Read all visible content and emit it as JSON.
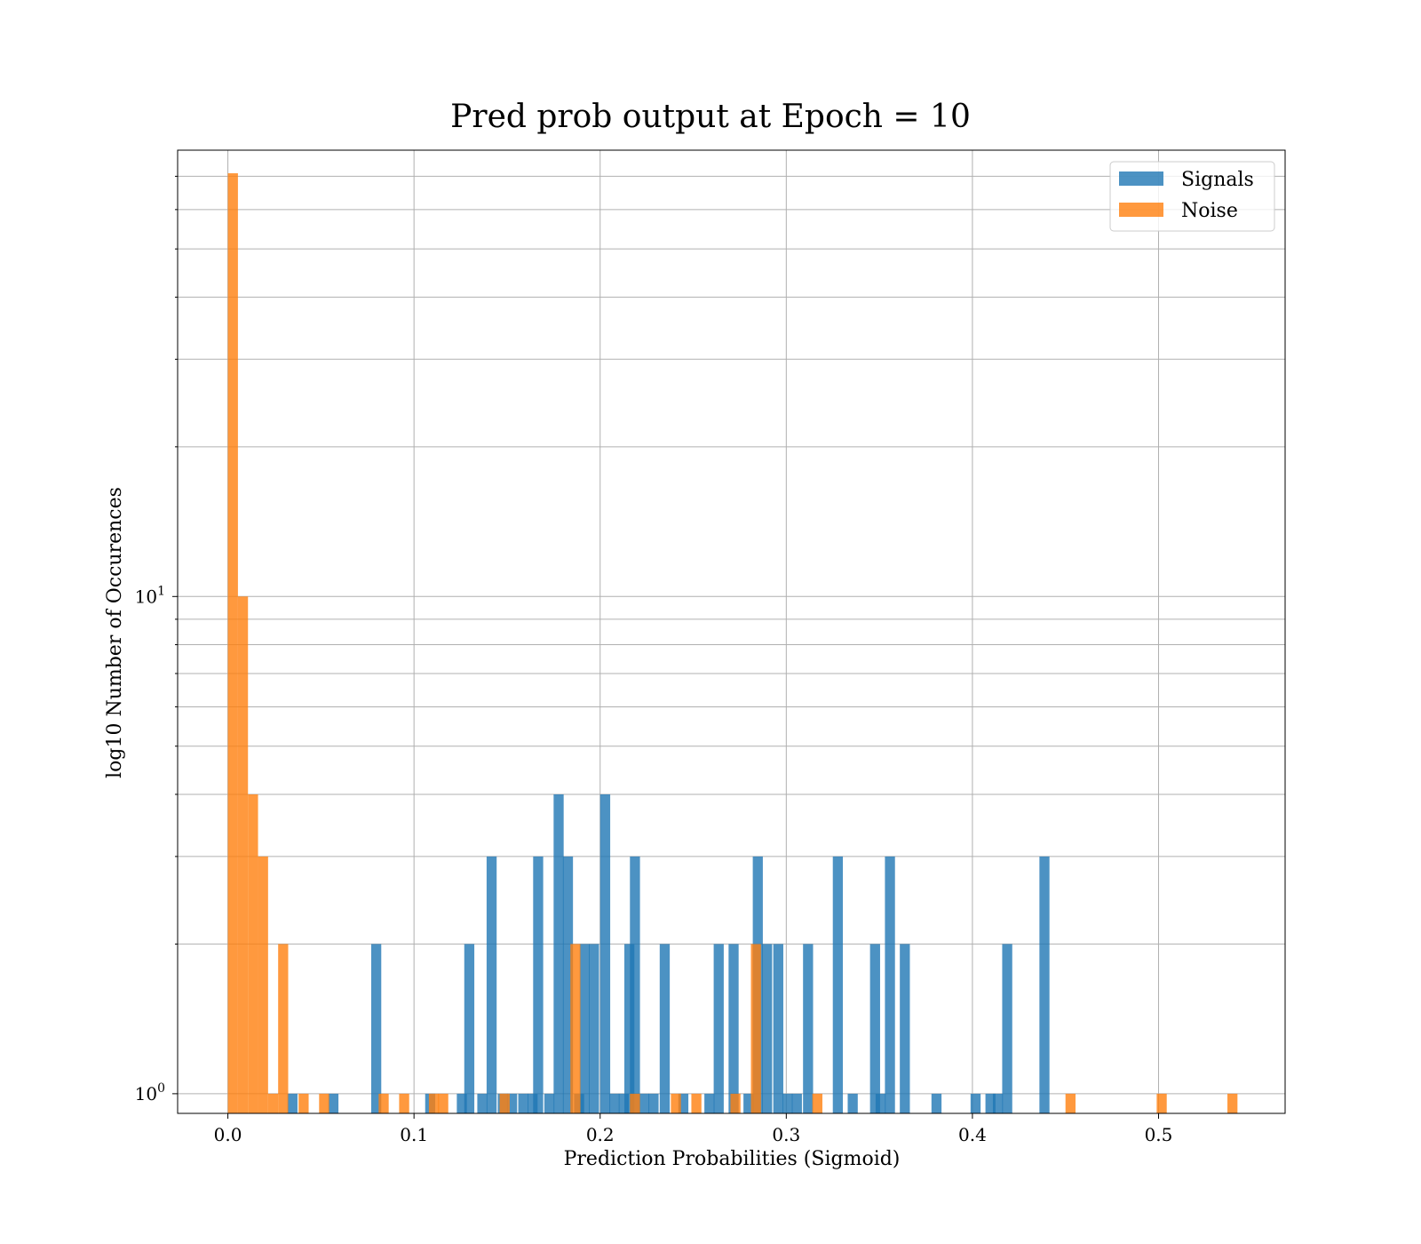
{
  "chart_data": {
    "type": "bar",
    "subtype": "overlaid-histogram",
    "title": "Pred prob output at Epoch = 10",
    "xlabel": "Prediction Probabilities (Sigmoid)",
    "ylabel": "log10 Number of Occurences",
    "xlim": [
      -0.027,
      0.568
    ],
    "ylim": [
      0.913,
      79
    ],
    "yscale": "log",
    "grid": true,
    "legend_position": "top-right",
    "bin_width": 0.0054,
    "x_ticks": [
      {
        "value": 0.0,
        "label": "0.0"
      },
      {
        "value": 0.1,
        "label": "0.1"
      },
      {
        "value": 0.2,
        "label": "0.2"
      },
      {
        "value": 0.3,
        "label": "0.3"
      },
      {
        "value": 0.4,
        "label": "0.4"
      },
      {
        "value": 0.5,
        "label": "0.5"
      }
    ],
    "y_ticks": [
      {
        "value": 1,
        "base": "10",
        "exp": "0"
      },
      {
        "value": 10,
        "base": "10",
        "exp": "1"
      }
    ],
    "series": [
      {
        "name": "Signals",
        "color": "#1f77b4",
        "opacity": 0.8,
        "bins": [
          {
            "x": 0.032,
            "count": 1
          },
          {
            "x": 0.054,
            "count": 1
          },
          {
            "x": 0.077,
            "count": 2
          },
          {
            "x": 0.106,
            "count": 1
          },
          {
            "x": 0.123,
            "count": 1
          },
          {
            "x": 0.127,
            "count": 2
          },
          {
            "x": 0.134,
            "count": 1
          },
          {
            "x": 0.139,
            "count": 3
          },
          {
            "x": 0.145,
            "count": 1
          },
          {
            "x": 0.15,
            "count": 1
          },
          {
            "x": 0.156,
            "count": 1
          },
          {
            "x": 0.161,
            "count": 1
          },
          {
            "x": 0.164,
            "count": 3
          },
          {
            "x": 0.17,
            "count": 1
          },
          {
            "x": 0.175,
            "count": 4
          },
          {
            "x": 0.18,
            "count": 3
          },
          {
            "x": 0.186,
            "count": 1
          },
          {
            "x": 0.189,
            "count": 2
          },
          {
            "x": 0.194,
            "count": 2
          },
          {
            "x": 0.2,
            "count": 4
          },
          {
            "x": 0.205,
            "count": 1
          },
          {
            "x": 0.21,
            "count": 1
          },
          {
            "x": 0.213,
            "count": 2
          },
          {
            "x": 0.216,
            "count": 3
          },
          {
            "x": 0.221,
            "count": 1
          },
          {
            "x": 0.226,
            "count": 1
          },
          {
            "x": 0.232,
            "count": 2
          },
          {
            "x": 0.242,
            "count": 1
          },
          {
            "x": 0.256,
            "count": 1
          },
          {
            "x": 0.261,
            "count": 2
          },
          {
            "x": 0.269,
            "count": 2
          },
          {
            "x": 0.277,
            "count": 1
          },
          {
            "x": 0.282,
            "count": 3
          },
          {
            "x": 0.287,
            "count": 2
          },
          {
            "x": 0.293,
            "count": 2
          },
          {
            "x": 0.298,
            "count": 1
          },
          {
            "x": 0.303,
            "count": 1
          },
          {
            "x": 0.309,
            "count": 2
          },
          {
            "x": 0.325,
            "count": 3
          },
          {
            "x": 0.333,
            "count": 1
          },
          {
            "x": 0.345,
            "count": 2
          },
          {
            "x": 0.348,
            "count": 1
          },
          {
            "x": 0.353,
            "count": 3
          },
          {
            "x": 0.361,
            "count": 2
          },
          {
            "x": 0.378,
            "count": 1
          },
          {
            "x": 0.399,
            "count": 1
          },
          {
            "x": 0.407,
            "count": 1
          },
          {
            "x": 0.411,
            "count": 1
          },
          {
            "x": 0.416,
            "count": 2
          },
          {
            "x": 0.436,
            "count": 3
          }
        ]
      },
      {
        "name": "Noise",
        "color": "#ff7f0e",
        "opacity": 0.8,
        "bins": [
          {
            "x": 0.0,
            "count": 71
          },
          {
            "x": 0.0054,
            "count": 10
          },
          {
            "x": 0.0108,
            "count": 4
          },
          {
            "x": 0.0162,
            "count": 3
          },
          {
            "x": 0.0216,
            "count": 1
          },
          {
            "x": 0.027,
            "count": 2
          },
          {
            "x": 0.038,
            "count": 1
          },
          {
            "x": 0.049,
            "count": 1
          },
          {
            "x": 0.081,
            "count": 1
          },
          {
            "x": 0.092,
            "count": 1
          },
          {
            "x": 0.108,
            "count": 1
          },
          {
            "x": 0.113,
            "count": 1
          },
          {
            "x": 0.146,
            "count": 1
          },
          {
            "x": 0.184,
            "count": 2
          },
          {
            "x": 0.216,
            "count": 1
          },
          {
            "x": 0.238,
            "count": 1
          },
          {
            "x": 0.249,
            "count": 1
          },
          {
            "x": 0.27,
            "count": 1
          },
          {
            "x": 0.281,
            "count": 2
          },
          {
            "x": 0.314,
            "count": 1
          },
          {
            "x": 0.45,
            "count": 1
          },
          {
            "x": 0.499,
            "count": 1
          },
          {
            "x": 0.537,
            "count": 1
          }
        ]
      }
    ]
  }
}
